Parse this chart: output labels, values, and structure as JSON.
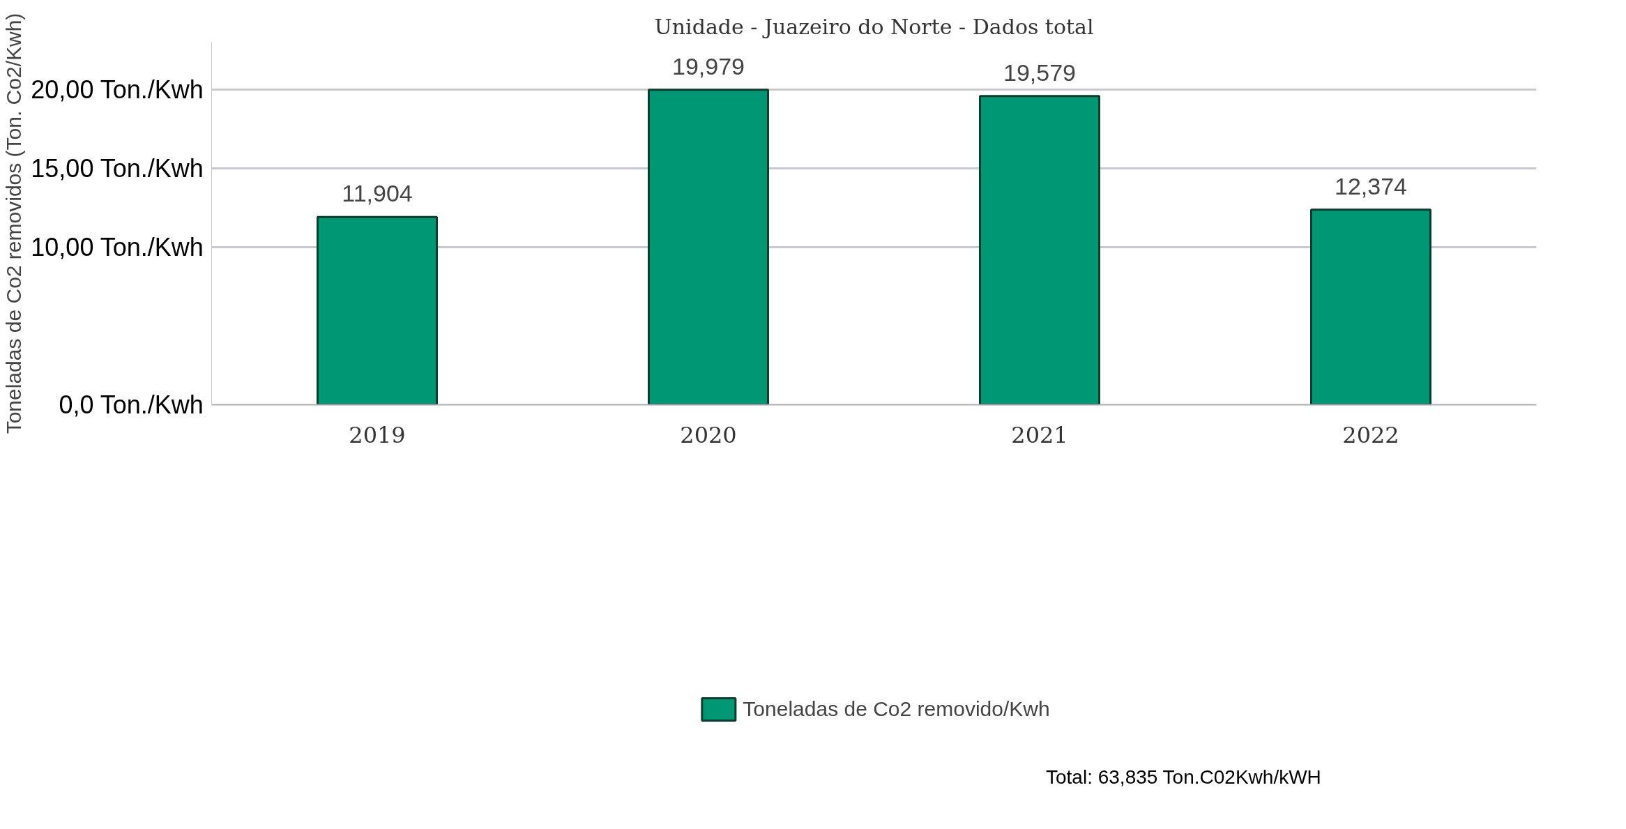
{
  "chart_data": {
    "type": "bar",
    "title": "Unidade - Juazeiro do Norte - Dados total",
    "ylabel": "Toneladas de Co2 removidos (Ton. Co2/Kwh)",
    "categories": [
      "2019",
      "2020",
      "2021",
      "2022"
    ],
    "series": [
      {
        "name": "Toneladas de Co2 removido/Kwh",
        "color": "#009874",
        "values": [
          11.904,
          19.979,
          19.579,
          12.374
        ]
      }
    ],
    "value_labels": [
      "11,904",
      "19,979",
      "19,579",
      "12,374"
    ],
    "ylim": [
      0,
      23
    ],
    "yticks": [
      {
        "value": 0,
        "label": "0,0 Ton./Kwh"
      },
      {
        "value": 10,
        "label": "10,00 Ton./Kwh"
      },
      {
        "value": 15,
        "label": "15,00 Ton./Kwh"
      },
      {
        "value": 20,
        "label": "20,00 Ton./Kwh"
      }
    ],
    "grid": "y",
    "legend": "bottom",
    "annotations": [
      "Total: 63,835 Ton.C02Kwh/kWH"
    ]
  }
}
